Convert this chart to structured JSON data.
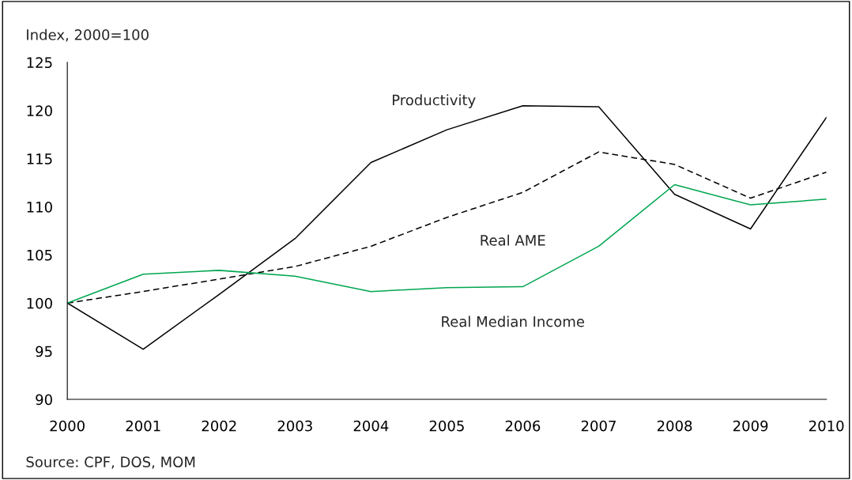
{
  "chart_data": {
    "type": "line",
    "ylabel": "Index, 2000=100",
    "x": [
      2000,
      2001,
      2002,
      2003,
      2004,
      2005,
      2006,
      2007,
      2008,
      2009,
      2010
    ],
    "series": [
      {
        "name": "Productivity",
        "color": "#000000",
        "line_style": "solid",
        "values": [
          100,
          95.2,
          100.9,
          106.7,
          114.6,
          118.0,
          120.5,
          120.4,
          111.3,
          107.7,
          119.3
        ]
      },
      {
        "name": "Real AME",
        "color": "#000000",
        "line_style": "dashed",
        "values": [
          100,
          101.2,
          102.5,
          103.8,
          105.9,
          108.9,
          111.5,
          115.7,
          114.4,
          110.9,
          113.6
        ]
      },
      {
        "name": "Real Median Income",
        "color": "#00a651",
        "line_style": "solid",
        "values": [
          100,
          103.0,
          103.4,
          102.8,
          101.2,
          101.6,
          101.7,
          105.9,
          112.3,
          110.2,
          110.8
        ]
      }
    ],
    "annotations": [
      "Source: CPF, DOS, MOM"
    ],
    "xlim": [
      2000,
      2010
    ],
    "xticks": [
      2000,
      2001,
      2002,
      2003,
      2004,
      2005,
      2006,
      2007,
      2008,
      2009,
      2010
    ],
    "ylim": [
      90,
      125
    ],
    "yticks": [
      90,
      95,
      100,
      105,
      110,
      115,
      120,
      125
    ],
    "grid": false,
    "marker": "none"
  }
}
